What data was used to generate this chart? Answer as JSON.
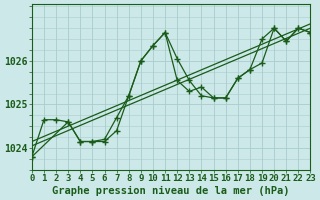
{
  "title": "Graphe pression niveau de la mer (hPa)",
  "background_color": "#cce8e8",
  "grid_color": "#aacccc",
  "line_color": "#1a5c1a",
  "marker_color": "#1a5c1a",
  "xlim": [
    0,
    23
  ],
  "ylim": [
    1023.5,
    1027.3
  ],
  "yticks": [
    1024,
    1025,
    1026
  ],
  "xtick_labels": [
    "0",
    "1",
    "2",
    "3",
    "4",
    "5",
    "6",
    "7",
    "8",
    "9",
    "10",
    "11",
    "12",
    "13",
    "14",
    "15",
    "16",
    "17",
    "18",
    "19",
    "20",
    "21",
    "22",
    "23"
  ],
  "series1_x": [
    0,
    1,
    2,
    3,
    4,
    5,
    6,
    7,
    8,
    9,
    10,
    11,
    12,
    13,
    14,
    15,
    16,
    17,
    18,
    19,
    20,
    21,
    22,
    23
  ],
  "series1_y": [
    1023.8,
    1024.65,
    1024.65,
    1024.6,
    1024.15,
    1024.15,
    1024.2,
    1024.7,
    1025.2,
    1026.0,
    1026.35,
    1026.65,
    1026.05,
    1025.55,
    1025.2,
    1025.15,
    1025.15,
    1025.6,
    1025.8,
    1025.95,
    1026.75,
    1026.45,
    1026.75,
    1026.65
  ],
  "series2_x": [
    0,
    3,
    4,
    5,
    6,
    7,
    8,
    9,
    10,
    11,
    12,
    13,
    14,
    15,
    16,
    17,
    18,
    19,
    20,
    21,
    22,
    23
  ],
  "series2_y": [
    1023.8,
    1024.6,
    1024.15,
    1024.15,
    1024.15,
    1024.4,
    1025.2,
    1026.0,
    1026.35,
    1026.65,
    1025.55,
    1025.3,
    1025.4,
    1025.15,
    1025.15,
    1025.6,
    1025.8,
    1026.5,
    1026.75,
    1026.45,
    1026.75,
    1026.65
  ],
  "trend1_x": [
    0,
    23
  ],
  "trend1_y": [
    1024.05,
    1026.75
  ],
  "trend2_x": [
    0,
    23
  ],
  "trend2_y": [
    1024.15,
    1026.85
  ],
  "xlabel_fontsize": 6.5,
  "ylabel_fontsize": 7,
  "title_fontsize": 7.5
}
